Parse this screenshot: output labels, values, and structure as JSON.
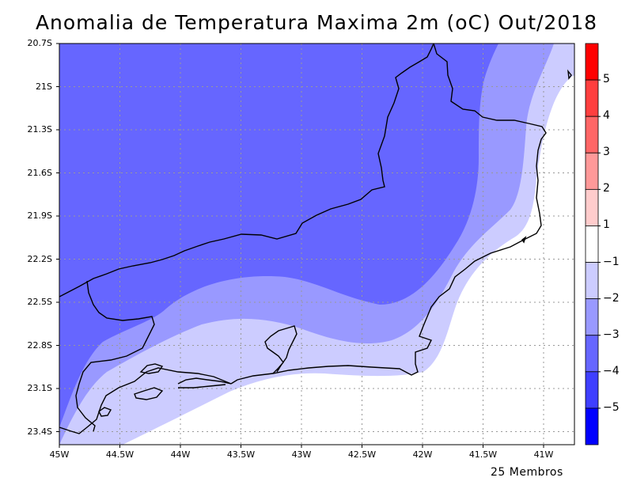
{
  "title": "Anomalia de Temperatura Maxima 2m (oC) Out/2018",
  "footer": "25 Membros",
  "lat_ticks": [
    "20.7S",
    "21S",
    "21.3S",
    "21.6S",
    "21.9S",
    "22.2S",
    "22.5S",
    "22.8S",
    "23.1S",
    "23.4S"
  ],
  "lon_ticks": [
    "45W",
    "44.5W",
    "44W",
    "43.5W",
    "43W",
    "42.5W",
    "42W",
    "41.5W",
    "41W"
  ],
  "colorbar": {
    "labels": [
      "5",
      "4",
      "3",
      "2",
      "1",
      "−1",
      "−2",
      "−3",
      "−4",
      "−5"
    ],
    "colors": [
      "#ff0000",
      "#ff3f3f",
      "#ff6666",
      "#ff9999",
      "#ffcccc",
      "#ffffff",
      "#ccccff",
      "#9999ff",
      "#6666ff",
      "#3f3fff",
      "#0000ff"
    ]
  },
  "shading_colors": {
    "class_m4_m3": "#6666ff",
    "class_m3_m2": "#9999ff",
    "class_m2_m1": "#ccccff",
    "class_m1_1": "#ffffff"
  }
}
